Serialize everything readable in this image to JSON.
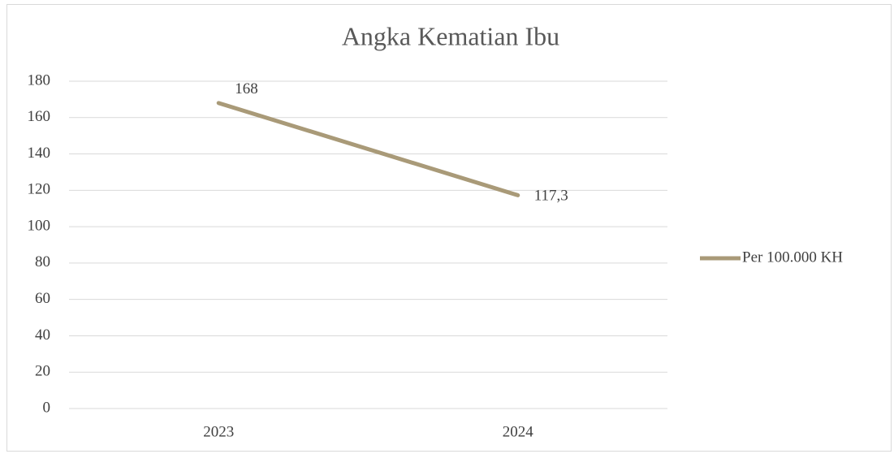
{
  "chart_data": {
    "type": "line",
    "title": "Angka Kematian Ibu",
    "categories": [
      "2023",
      "2024"
    ],
    "series": [
      {
        "name": "Per 100.000 KH",
        "color": "#a99a78",
        "values": [
          168,
          117.3
        ],
        "value_labels": [
          "168",
          "117,3"
        ]
      }
    ],
    "ylim": [
      0,
      180
    ],
    "yticks": [
      0,
      20,
      40,
      60,
      80,
      100,
      120,
      140,
      160,
      180
    ],
    "grid": true,
    "legend": "right"
  }
}
